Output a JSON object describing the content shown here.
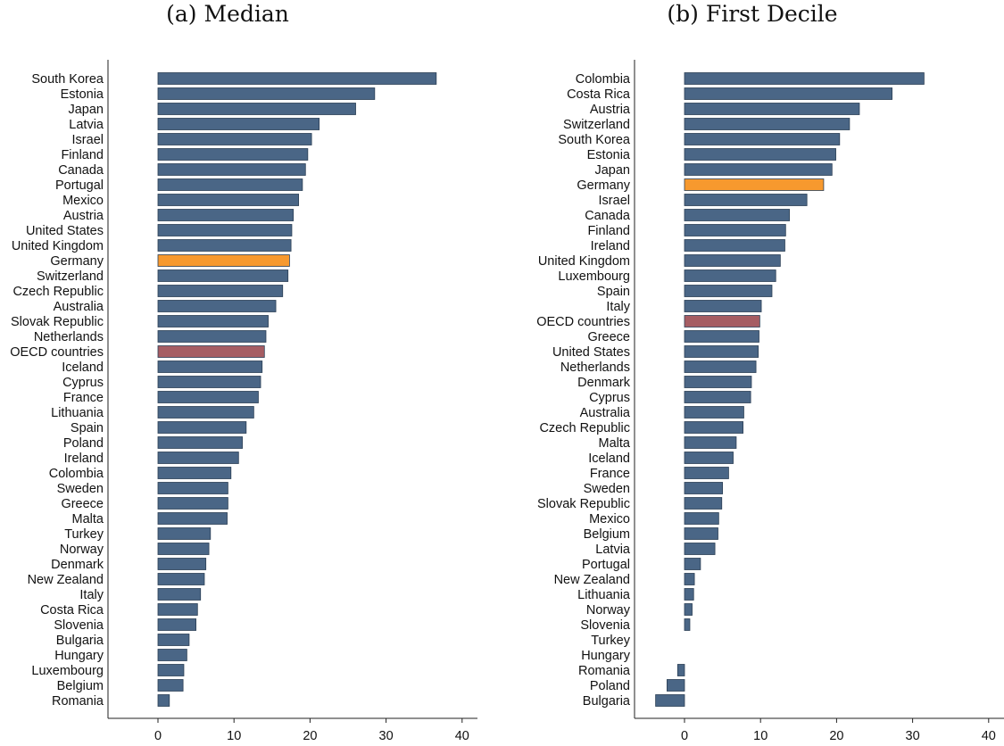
{
  "colors": {
    "default": "#4a6686",
    "germany": "#f7992e",
    "oecd": "#a65d63"
  },
  "chart_data": [
    {
      "type": "bar",
      "orientation": "horizontal",
      "title": "(a) Median",
      "xlabel": "",
      "ylabel": "",
      "xlim": [
        -7,
        42
      ],
      "xticks": [
        0,
        10,
        20,
        30,
        40
      ],
      "grid": false,
      "categories": [
        "South Korea",
        "Estonia",
        "Japan",
        "Latvia",
        "Israel",
        "Finland",
        "Canada",
        "Portugal",
        "Mexico",
        "Austria",
        "United States",
        "United Kingdom",
        "Germany",
        "Switzerland",
        "Czech Republic",
        "Australia",
        "Slovak Republic",
        "Netherlands",
        "OECD countries",
        "Iceland",
        "Cyprus",
        "France",
        "Lithuania",
        "Spain",
        "Poland",
        "Ireland",
        "Colombia",
        "Sweden",
        "Greece",
        "Malta",
        "Turkey",
        "Norway",
        "Denmark",
        "New Zealand",
        "Italy",
        "Costa Rica",
        "Slovenia",
        "Bulgaria",
        "Hungary",
        "Luxembourg",
        "Belgium",
        "Romania"
      ],
      "values": [
        36.6,
        28.5,
        26.0,
        21.2,
        20.2,
        19.7,
        19.4,
        19.0,
        18.5,
        17.8,
        17.6,
        17.5,
        17.3,
        17.1,
        16.4,
        15.5,
        14.5,
        14.2,
        14.0,
        13.7,
        13.5,
        13.2,
        12.6,
        11.6,
        11.1,
        10.6,
        9.6,
        9.2,
        9.2,
        9.1,
        6.9,
        6.7,
        6.3,
        6.1,
        5.6,
        5.2,
        5.0,
        4.1,
        3.8,
        3.4,
        3.3,
        1.5
      ]
    },
    {
      "type": "bar",
      "orientation": "horizontal",
      "title": "(b) First Decile",
      "xlabel": "",
      "ylabel": "",
      "xlim": [
        -7,
        42
      ],
      "xticks": [
        0,
        10,
        20,
        30,
        40
      ],
      "grid": false,
      "categories": [
        "Colombia",
        "Costa Rica",
        "Austria",
        "Switzerland",
        "South Korea",
        "Estonia",
        "Japan",
        "Germany",
        "Israel",
        "Canada",
        "Finland",
        "Ireland",
        "United Kingdom",
        "Luxembourg",
        "Spain",
        "Italy",
        "OECD countries",
        "Greece",
        "United States",
        "Netherlands",
        "Denmark",
        "Cyprus",
        "Australia",
        "Czech Republic",
        "Malta",
        "Iceland",
        "France",
        "Sweden",
        "Slovak Republic",
        "Mexico",
        "Belgium",
        "Latvia",
        "Portugal",
        "New Zealand",
        "Lithuania",
        "Norway",
        "Slovenia",
        "Turkey",
        "Hungary",
        "Romania",
        "Poland",
        "Bulgaria"
      ],
      "values": [
        31.5,
        27.3,
        23.0,
        21.7,
        20.4,
        19.9,
        19.4,
        18.3,
        16.1,
        13.8,
        13.3,
        13.2,
        12.6,
        12.0,
        11.5,
        10.1,
        9.9,
        9.8,
        9.7,
        9.4,
        8.8,
        8.7,
        7.8,
        7.7,
        6.8,
        6.4,
        5.8,
        5.0,
        4.9,
        4.5,
        4.4,
        4.0,
        2.1,
        1.3,
        1.2,
        1.0,
        0.7,
        0,
        0,
        -0.9,
        -2.3,
        -3.8
      ]
    }
  ]
}
